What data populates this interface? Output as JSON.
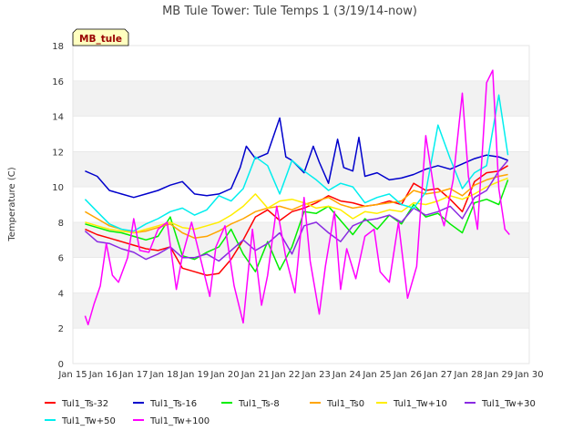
{
  "chart_data": {
    "type": "line",
    "title": "MB Tule Tower: Tule Temps 1 (3/19/14-now)",
    "xlabel": "",
    "ylabel": "Temperature (C)",
    "ylim": [
      0,
      18
    ],
    "yticks": [
      0,
      2,
      4,
      6,
      8,
      10,
      12,
      14,
      16,
      18
    ],
    "xlim": [
      15,
      30
    ],
    "xticks": [
      15,
      16,
      17,
      18,
      19,
      20,
      21,
      22,
      23,
      24,
      25,
      26,
      27,
      28,
      29,
      30
    ],
    "xtick_labels": [
      "Jan 15",
      "Jan 16",
      "Jan 17",
      "Jan 18",
      "Jan 19",
      "Jan 20",
      "Jan 21",
      "Jan 22",
      "Jan 23",
      "Jan 24",
      "Jan 25",
      "Jan 26",
      "Jan 27",
      "Jan 28",
      "Jan 29",
      "Jan 30"
    ],
    "grid": "horizontal bands",
    "band_colors": [
      "#ffffff",
      "#f2f2f2"
    ],
    "annotation": "MB_tule",
    "legend_position": "bottom",
    "series": [
      {
        "name": "Tul1_Ts-32",
        "color": "#ff0000",
        "x": [
          15.4,
          15.8,
          16.2,
          16.6,
          17.0,
          17.4,
          17.8,
          18.2,
          18.6,
          19.0,
          19.4,
          19.8,
          20.2,
          20.6,
          21.0,
          21.4,
          21.8,
          22.2,
          22.6,
          23.0,
          23.4,
          23.8,
          24.2,
          24.6,
          25.0,
          25.4,
          25.8,
          26.2,
          26.6,
          27.0,
          27.4,
          27.8,
          28.2,
          28.6,
          29.0,
          29.3
        ],
        "y": [
          7.6,
          7.3,
          7.1,
          6.9,
          6.7,
          6.5,
          6.4,
          6.6,
          5.4,
          5.2,
          5.0,
          5.1,
          5.9,
          7.0,
          8.3,
          8.7,
          8.1,
          8.6,
          8.8,
          9.1,
          9.5,
          9.2,
          9.1,
          8.9,
          9.0,
          9.2,
          9.0,
          10.2,
          9.8,
          9.9,
          9.3,
          8.6,
          10.3,
          10.8,
          10.9,
          11.2
        ]
      },
      {
        "name": "Tul1_Ts-16",
        "color": "#0000cc",
        "x": [
          15.4,
          15.8,
          16.2,
          16.6,
          17.0,
          17.4,
          17.8,
          18.2,
          18.6,
          19.0,
          19.4,
          19.8,
          20.2,
          20.5,
          20.7,
          21.0,
          21.4,
          21.8,
          22.0,
          22.2,
          22.6,
          22.9,
          23.1,
          23.4,
          23.7,
          23.9,
          24.2,
          24.4,
          24.6,
          25.0,
          25.4,
          25.8,
          26.2,
          26.6,
          27.0,
          27.4,
          27.8,
          28.2,
          28.6,
          29.0,
          29.3
        ],
        "y": [
          10.9,
          10.6,
          9.8,
          9.6,
          9.4,
          9.6,
          9.8,
          10.1,
          10.3,
          9.6,
          9.5,
          9.6,
          9.9,
          11.1,
          12.3,
          11.6,
          11.9,
          13.9,
          11.7,
          11.5,
          10.8,
          12.3,
          11.4,
          10.2,
          12.7,
          11.1,
          10.9,
          12.8,
          10.6,
          10.8,
          10.4,
          10.5,
          10.7,
          11.0,
          11.2,
          11.0,
          11.3,
          11.6,
          11.8,
          11.7,
          11.5
        ]
      },
      {
        "name": "Tul1_Ts-8",
        "color": "#00ee00",
        "x": [
          15.4,
          15.8,
          16.2,
          16.6,
          17.0,
          17.4,
          17.8,
          18.2,
          18.6,
          19.0,
          19.4,
          19.8,
          20.2,
          20.6,
          21.0,
          21.4,
          21.8,
          22.2,
          22.6,
          23.0,
          23.4,
          23.8,
          24.2,
          24.6,
          25.0,
          25.4,
          25.8,
          26.2,
          26.6,
          27.0,
          27.4,
          27.8,
          28.2,
          28.6,
          29.0,
          29.3
        ],
        "y": [
          7.9,
          7.7,
          7.5,
          7.4,
          7.2,
          7.0,
          7.2,
          8.3,
          6.1,
          5.9,
          6.3,
          6.6,
          7.6,
          6.2,
          5.2,
          6.9,
          5.3,
          6.6,
          8.6,
          8.5,
          8.9,
          8.1,
          7.3,
          8.2,
          7.6,
          8.4,
          7.9,
          9.0,
          8.3,
          8.5,
          7.9,
          7.4,
          9.1,
          9.3,
          9.0,
          10.4
        ]
      },
      {
        "name": "Tul1_Ts0",
        "color": "#ffa500",
        "x": [
          15.4,
          15.8,
          16.2,
          16.6,
          17.0,
          17.4,
          17.8,
          18.2,
          18.6,
          19.0,
          19.4,
          19.8,
          20.2,
          20.6,
          21.0,
          21.4,
          21.8,
          22.2,
          22.6,
          23.0,
          23.4,
          23.8,
          24.2,
          24.6,
          25.0,
          25.4,
          25.8,
          26.2,
          26.6,
          27.0,
          27.4,
          27.8,
          28.2,
          28.6,
          29.0,
          29.3
        ],
        "y": [
          8.6,
          8.2,
          7.8,
          7.6,
          7.4,
          7.5,
          7.7,
          7.9,
          7.4,
          7.1,
          7.2,
          7.5,
          7.9,
          8.2,
          8.6,
          8.8,
          8.9,
          8.7,
          9.0,
          9.2,
          9.4,
          9.0,
          8.8,
          8.9,
          9.0,
          9.1,
          9.2,
          9.8,
          9.6,
          9.7,
          9.9,
          9.5,
          10.1,
          10.4,
          10.6,
          10.7
        ]
      },
      {
        "name": "Tul1_Tw+10",
        "color": "#ffee00",
        "x": [
          15.4,
          15.8,
          16.2,
          16.6,
          17.0,
          17.4,
          17.8,
          18.2,
          18.6,
          19.0,
          19.4,
          19.8,
          20.2,
          20.6,
          21.0,
          21.4,
          21.8,
          22.2,
          22.6,
          23.0,
          23.4,
          23.8,
          24.2,
          24.6,
          25.0,
          25.4,
          25.8,
          26.2,
          26.6,
          27.0,
          27.4,
          27.8,
          28.2,
          28.6,
          29.0,
          29.3
        ],
        "y": [
          8.0,
          7.8,
          7.6,
          7.5,
          7.4,
          7.6,
          7.8,
          8.0,
          7.7,
          7.6,
          7.8,
          8.0,
          8.4,
          8.9,
          9.6,
          8.8,
          9.2,
          9.3,
          9.1,
          8.8,
          8.9,
          8.7,
          8.2,
          8.6,
          8.5,
          8.7,
          8.6,
          9.1,
          9.0,
          9.2,
          9.5,
          9.3,
          9.6,
          10.0,
          10.3,
          10.5
        ]
      },
      {
        "name": "Tul1_Tw+30",
        "color": "#8a2be2",
        "x": [
          15.4,
          15.8,
          16.2,
          16.6,
          17.0,
          17.4,
          17.8,
          18.2,
          18.6,
          19.0,
          19.4,
          19.8,
          20.2,
          20.6,
          21.0,
          21.4,
          21.8,
          22.2,
          22.6,
          23.0,
          23.4,
          23.8,
          24.2,
          24.6,
          25.0,
          25.4,
          25.8,
          26.2,
          26.6,
          27.0,
          27.4,
          27.8,
          28.2,
          28.6,
          29.0,
          29.3
        ],
        "y": [
          7.5,
          6.9,
          6.8,
          6.5,
          6.3,
          5.9,
          6.2,
          6.6,
          6.0,
          6.0,
          6.2,
          5.8,
          6.4,
          7.0,
          6.4,
          6.8,
          7.4,
          6.2,
          7.8,
          8.0,
          7.4,
          6.9,
          7.8,
          8.1,
          8.2,
          8.4,
          8.0,
          8.8,
          8.4,
          8.6,
          8.9,
          8.2,
          9.4,
          9.8,
          10.9,
          11.5
        ]
      },
      {
        "name": "Tul1_Tw+50",
        "color": "#00eeee",
        "x": [
          15.4,
          15.8,
          16.2,
          16.6,
          17.0,
          17.4,
          17.8,
          18.2,
          18.6,
          19.0,
          19.4,
          19.8,
          20.2,
          20.6,
          21.0,
          21.4,
          21.8,
          22.2,
          22.6,
          23.0,
          23.4,
          23.8,
          24.2,
          24.6,
          25.0,
          25.4,
          25.8,
          26.2,
          26.6,
          27.0,
          27.4,
          27.8,
          28.2,
          28.6,
          29.0,
          29.3
        ],
        "y": [
          9.3,
          8.6,
          7.9,
          7.6,
          7.5,
          7.9,
          8.2,
          8.6,
          8.8,
          8.4,
          8.7,
          9.5,
          9.2,
          9.9,
          11.7,
          11.2,
          9.6,
          11.5,
          10.9,
          10.4,
          9.8,
          10.2,
          10.0,
          9.1,
          9.4,
          9.6,
          9.0,
          8.8,
          9.7,
          13.5,
          11.6,
          9.9,
          10.8,
          11.2,
          15.2,
          11.8
        ]
      },
      {
        "name": "Tul1_Tw+100",
        "color": "#ff00ff",
        "x": [
          15.4,
          15.5,
          15.7,
          15.9,
          16.1,
          16.3,
          16.5,
          16.8,
          17.0,
          17.2,
          17.5,
          17.8,
          18.1,
          18.4,
          18.6,
          18.9,
          19.2,
          19.5,
          19.7,
          20.0,
          20.3,
          20.6,
          20.9,
          21.2,
          21.4,
          21.7,
          22.0,
          22.3,
          22.6,
          22.8,
          23.1,
          23.3,
          23.6,
          23.8,
          24.0,
          24.3,
          24.6,
          24.9,
          25.1,
          25.4,
          25.7,
          26.0,
          26.3,
          26.6,
          26.9,
          27.2,
          27.5,
          27.8,
          28.0,
          28.3,
          28.6,
          28.8,
          29.0,
          29.2,
          29.35
        ],
        "y": [
          2.7,
          2.2,
          3.4,
          4.4,
          6.8,
          5.0,
          4.6,
          6.0,
          8.2,
          6.4,
          6.3,
          7.6,
          8.0,
          4.2,
          6.1,
          8.0,
          5.9,
          3.8,
          6.6,
          7.8,
          4.4,
          2.3,
          7.6,
          3.3,
          5.0,
          8.9,
          6.0,
          4.0,
          9.4,
          5.8,
          2.8,
          5.5,
          8.6,
          4.2,
          6.5,
          4.8,
          7.2,
          7.6,
          5.2,
          4.6,
          8.0,
          3.7,
          5.5,
          12.9,
          9.5,
          7.8,
          10.4,
          15.3,
          10.6,
          7.6,
          15.9,
          16.6,
          9.9,
          7.6,
          7.3
        ]
      }
    ]
  }
}
